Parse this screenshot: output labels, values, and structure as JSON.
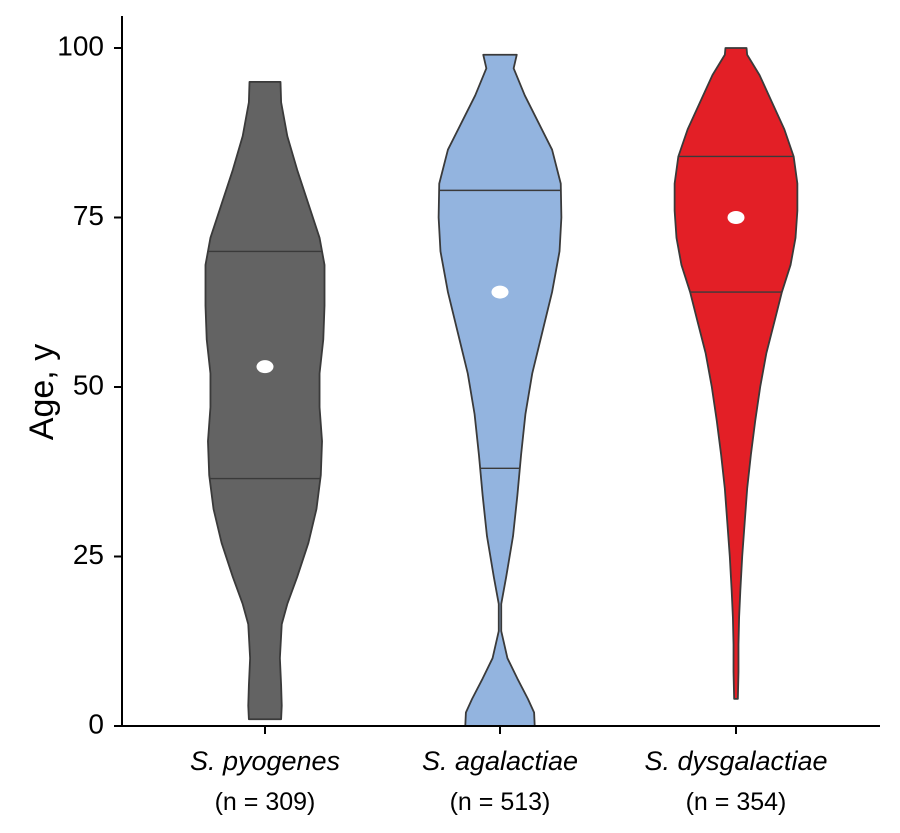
{
  "chart_data": {
    "type": "violin",
    "title": "",
    "xlabel": "",
    "ylabel": "Age, y",
    "ylim": [
      0,
      100
    ],
    "yticks": [
      0,
      25,
      50,
      75,
      100
    ],
    "grid": false,
    "categories": [
      "S. pyogenes",
      "S. agalactiae",
      "S. dysgalactiae"
    ],
    "n_labels": [
      "(n = 309)",
      "(n = 513)",
      "(n = 354)"
    ],
    "series": [
      {
        "category": "S. pyogenes",
        "color": "#636363",
        "min": 1,
        "max": 95,
        "q1": 36.5,
        "median": 53,
        "q3": 70,
        "density": [
          [
            1,
            0.26
          ],
          [
            3,
            0.27
          ],
          [
            6,
            0.26
          ],
          [
            10,
            0.24
          ],
          [
            15,
            0.27
          ],
          [
            18,
            0.36
          ],
          [
            22,
            0.52
          ],
          [
            27,
            0.7
          ],
          [
            32,
            0.83
          ],
          [
            37,
            0.9
          ],
          [
            42,
            0.92
          ],
          [
            47,
            0.88
          ],
          [
            52,
            0.88
          ],
          [
            57,
            0.94
          ],
          [
            62,
            0.96
          ],
          [
            68,
            0.96
          ],
          [
            72,
            0.88
          ],
          [
            77,
            0.7
          ],
          [
            82,
            0.52
          ],
          [
            87,
            0.36
          ],
          [
            92,
            0.26
          ],
          [
            95,
            0.25
          ]
        ]
      },
      {
        "category": "S. agalactiae",
        "color": "#93b4df",
        "min": 0,
        "max": 99,
        "q1": 38,
        "median": 64,
        "q3": 79,
        "density": [
          [
            0,
            0.56
          ],
          [
            2,
            0.55
          ],
          [
            4,
            0.45
          ],
          [
            7,
            0.28
          ],
          [
            10,
            0.12
          ],
          [
            14,
            0.02
          ],
          [
            18,
            0.02
          ],
          [
            22,
            0.1
          ],
          [
            28,
            0.21
          ],
          [
            34,
            0.28
          ],
          [
            40,
            0.34
          ],
          [
            46,
            0.41
          ],
          [
            52,
            0.52
          ],
          [
            58,
            0.68
          ],
          [
            64,
            0.84
          ],
          [
            70,
            0.96
          ],
          [
            75,
            0.99
          ],
          [
            80,
            0.98
          ],
          [
            85,
            0.84
          ],
          [
            89,
            0.62
          ],
          [
            93,
            0.4
          ],
          [
            97,
            0.22
          ],
          [
            99,
            0.27
          ]
        ]
      },
      {
        "category": "S. dysgalactiae",
        "color": "#e31f26",
        "min": 4,
        "max": 100,
        "q1": 64,
        "median": 75,
        "q3": 84,
        "density": [
          [
            4,
            0.03
          ],
          [
            8,
            0.04
          ],
          [
            12,
            0.04
          ],
          [
            16,
            0.05
          ],
          [
            20,
            0.07
          ],
          [
            25,
            0.1
          ],
          [
            30,
            0.14
          ],
          [
            35,
            0.18
          ],
          [
            40,
            0.24
          ],
          [
            45,
            0.31
          ],
          [
            50,
            0.39
          ],
          [
            55,
            0.49
          ],
          [
            60,
            0.63
          ],
          [
            64,
            0.74
          ],
          [
            68,
            0.88
          ],
          [
            72,
            0.96
          ],
          [
            76,
            0.99
          ],
          [
            80,
            0.99
          ],
          [
            84,
            0.93
          ],
          [
            88,
            0.78
          ],
          [
            92,
            0.58
          ],
          [
            96,
            0.38
          ],
          [
            99,
            0.18
          ],
          [
            100,
            0.17
          ]
        ]
      }
    ]
  }
}
